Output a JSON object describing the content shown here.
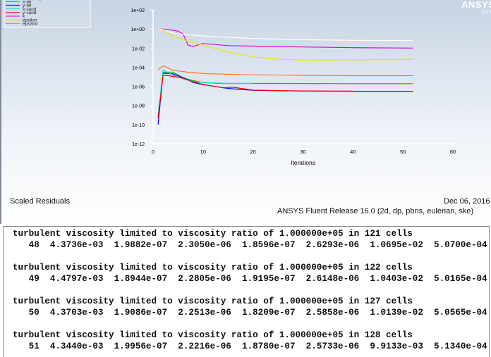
{
  "graphics": {
    "logo": "ANSYS",
    "version": "16.0",
    "caption": "Scaled Residuals",
    "date": "Dec 06, 2016",
    "release": "ANSYS Fluent Release 16.0 (2d, dp, pbns, eulerian, ske)"
  },
  "chart_data": {
    "type": "line",
    "title": "",
    "xlabel": "Iterations",
    "ylabel": "",
    "xlim": [
      0,
      60
    ],
    "ylim": [
      -12,
      2
    ],
    "y_scale": "log",
    "x_ticks": [
      "0",
      "10",
      "20",
      "30",
      "40",
      "50",
      "60"
    ],
    "y_ticks": [
      "1e+02",
      "1e+00",
      "1e-02",
      "1e-04",
      "1e-06",
      "1e-08",
      "1e-10",
      "1e-12"
    ],
    "legend_position": "top-left",
    "legend": [
      "continuity",
      "x-air",
      "y-air",
      "x-sand",
      "y-sand",
      "k",
      "epsilon",
      "epsand"
    ],
    "series": [
      {
        "name": "x-air",
        "color": "#00c000",
        "points": [
          [
            1,
            5e-10
          ],
          [
            2,
            3e-05
          ],
          [
            4,
            3e-05
          ],
          [
            6,
            8e-06
          ],
          [
            8,
            4e-06
          ],
          [
            10,
            2.5e-06
          ],
          [
            13,
            2e-06
          ],
          [
            20,
            2e-06
          ],
          [
            30,
            1.95e-06
          ],
          [
            40,
            1.9e-06
          ],
          [
            52,
            1.9e-06
          ]
        ]
      },
      {
        "name": "y-air",
        "color": "#0000ff",
        "points": [
          [
            1,
            1e-10
          ],
          [
            2,
            2.4e-05
          ],
          [
            4,
            2e-05
          ],
          [
            6,
            8e-06
          ],
          [
            8,
            2.5e-06
          ],
          [
            10,
            1.5e-06
          ],
          [
            15,
            6e-07
          ],
          [
            20,
            3.8e-07
          ],
          [
            30,
            3.2e-07
          ],
          [
            40,
            3e-07
          ],
          [
            52,
            3e-07
          ]
        ]
      },
      {
        "name": "x-sand",
        "color": "#00e0e0",
        "points": [
          [
            1,
            1e-09
          ],
          [
            2,
            5e-05
          ],
          [
            4,
            1.5e-05
          ],
          [
            6,
            6e-06
          ],
          [
            8,
            3e-06
          ],
          [
            10,
            2.5e-06
          ],
          [
            15,
            2e-06
          ],
          [
            20,
            2e-06
          ]
        ]
      },
      {
        "name": "y-sand",
        "color": "#ff0000",
        "points": [
          [
            1,
            5e-10
          ],
          [
            2,
            1.5e-05
          ],
          [
            4,
            1.1e-05
          ],
          [
            6,
            7e-06
          ],
          [
            8,
            3e-06
          ],
          [
            10,
            1.6e-06
          ],
          [
            14,
            7e-07
          ],
          [
            16,
            8e-07
          ],
          [
            20,
            4e-07
          ],
          [
            30,
            3.3e-07
          ],
          [
            40,
            3.2e-07
          ]
        ]
      },
      {
        "name": "k",
        "color": "#e000e0",
        "points": [
          [
            1,
            1
          ],
          [
            2,
            0.95
          ],
          [
            3,
            0.9
          ],
          [
            4,
            0.7
          ],
          [
            5,
            0.6
          ],
          [
            6,
            0.3
          ],
          [
            7,
            0.02
          ],
          [
            8,
            0.015
          ],
          [
            10,
            0.03
          ],
          [
            15,
            0.018
          ],
          [
            20,
            0.016
          ],
          [
            30,
            0.013
          ],
          [
            40,
            0.011
          ],
          [
            52,
            0.01
          ]
        ]
      },
      {
        "name": "epsilon",
        "color": "#e8e800",
        "points": [
          [
            1,
            1
          ],
          [
            2,
            0.7
          ],
          [
            4,
            0.18
          ],
          [
            7,
            0.05
          ],
          [
            10,
            0.02
          ],
          [
            15,
            0.004
          ],
          [
            20,
            0.0012
          ],
          [
            25,
            0.0007
          ],
          [
            30,
            0.00055
          ],
          [
            40,
            0.0006
          ],
          [
            52,
            0.00065
          ]
        ]
      },
      {
        "name": "epsand",
        "color": "#ff7a30",
        "points": [
          [
            1,
            5e-05
          ],
          [
            2,
            0.00014
          ],
          [
            4,
            4.8e-05
          ],
          [
            7,
            3e-05
          ],
          [
            10,
            2.2e-05
          ],
          [
            15,
            1.8e-05
          ],
          [
            20,
            1.6e-05
          ],
          [
            30,
            1.4e-05
          ],
          [
            40,
            1.3e-05
          ],
          [
            52,
            1.3e-05
          ]
        ]
      },
      {
        "name": "continuity",
        "color": "#ffffff",
        "points": [
          [
            1,
            1
          ],
          [
            2,
            0.9
          ],
          [
            4,
            0.35
          ],
          [
            7,
            0.25
          ],
          [
            10,
            0.18
          ],
          [
            20,
            0.1
          ],
          [
            30,
            0.075
          ],
          [
            40,
            0.065
          ],
          [
            52,
            0.06
          ]
        ]
      }
    ]
  },
  "console": {
    "lines": [
      "turbulent viscosity limited to viscosity ratio of 1.000000e+05 in 121 cells",
      "   48  4.3736e-03  1.9882e-07  2.3050e-06  1.8596e-07  2.6293e-06  1.0695e-02  5.0700e-04",
      "",
      "turbulent viscosity limited to viscosity ratio of 1.000000e+05 in 122 cells",
      "   49  4.4797e-03  1.8944e-07  2.2805e-06  1.9195e-07  2.6148e-06  1.0403e-02  5.0165e-04",
      "",
      "turbulent viscosity limited to viscosity ratio of 1.000000e+05 in 127 cells",
      "   50  4.3703e-03  1.9086e-07  2.2513e-06  1.8209e-07  2.5858e-06  1.0139e-02  5.0565e-04",
      "",
      "turbulent viscosity limited to viscosity ratio of 1.000000e+05 in 128 cells",
      "   51  4.3440e-03  1.9956e-07  2.2216e-06  1.8780e-07  2.5733e-06  9.9133e-03  5.1340e-04"
    ]
  }
}
